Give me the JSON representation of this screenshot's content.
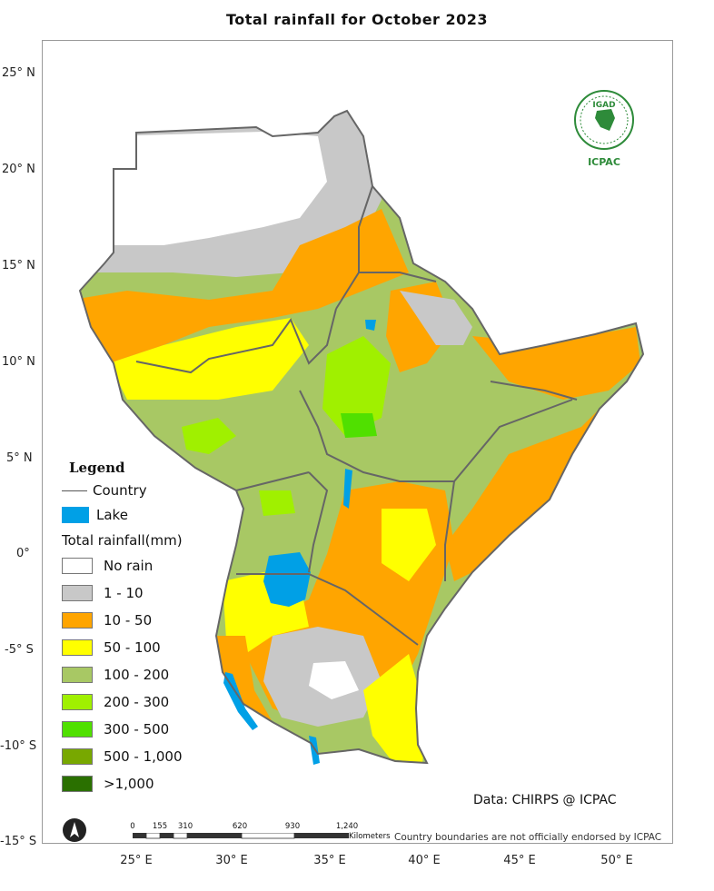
{
  "title": "Total rainfall  for  October  2023",
  "axes": {
    "lat_labels": [
      "25° N",
      "20° N",
      "15° N",
      "10° N",
      "5° N",
      "0°",
      "-5° S",
      "-10° S",
      "-15° S"
    ],
    "lon_labels": [
      "25° E",
      "30° E",
      "35° E",
      "40° E",
      "45° E",
      "50° E"
    ]
  },
  "legend": {
    "title": "Legend",
    "country_label": "Country",
    "lake_label": "Lake",
    "rainfall_title": "Total rainfall(mm)",
    "classes": [
      {
        "label": "No rain",
        "color": "#ffffff"
      },
      {
        "label": "1 - 10",
        "color": "#c8c8c8"
      },
      {
        "label": "10 - 50",
        "color": "#ffa500"
      },
      {
        "label": "50 - 100",
        "color": "#ffff00"
      },
      {
        "label": "100 - 200",
        "color": "#a8c864"
      },
      {
        "label": "200 - 300",
        "color": "#a0f000"
      },
      {
        "label": "300 - 500",
        "color": "#50e000"
      },
      {
        "label": "500 - 1,000",
        "color": "#78a800"
      },
      {
        "label": ">1,000",
        "color": "#2a7000"
      }
    ],
    "lake_color": "#00a0e6",
    "boundary_color": "#666666"
  },
  "source": "Data: CHIRPS @ ICPAC",
  "disclaimer": "Country boundaries are not officially endorsed by ICPAC",
  "scale_bar": {
    "labels": [
      "0",
      "155",
      "310",
      "620",
      "930",
      "1,240"
    ],
    "units": "Kilometers"
  },
  "logo": {
    "top_text": "IGAD",
    "bottom_text": "ICPAC"
  },
  "icons": [
    "north-arrow-icon",
    "igad-icpac-logo"
  ]
}
